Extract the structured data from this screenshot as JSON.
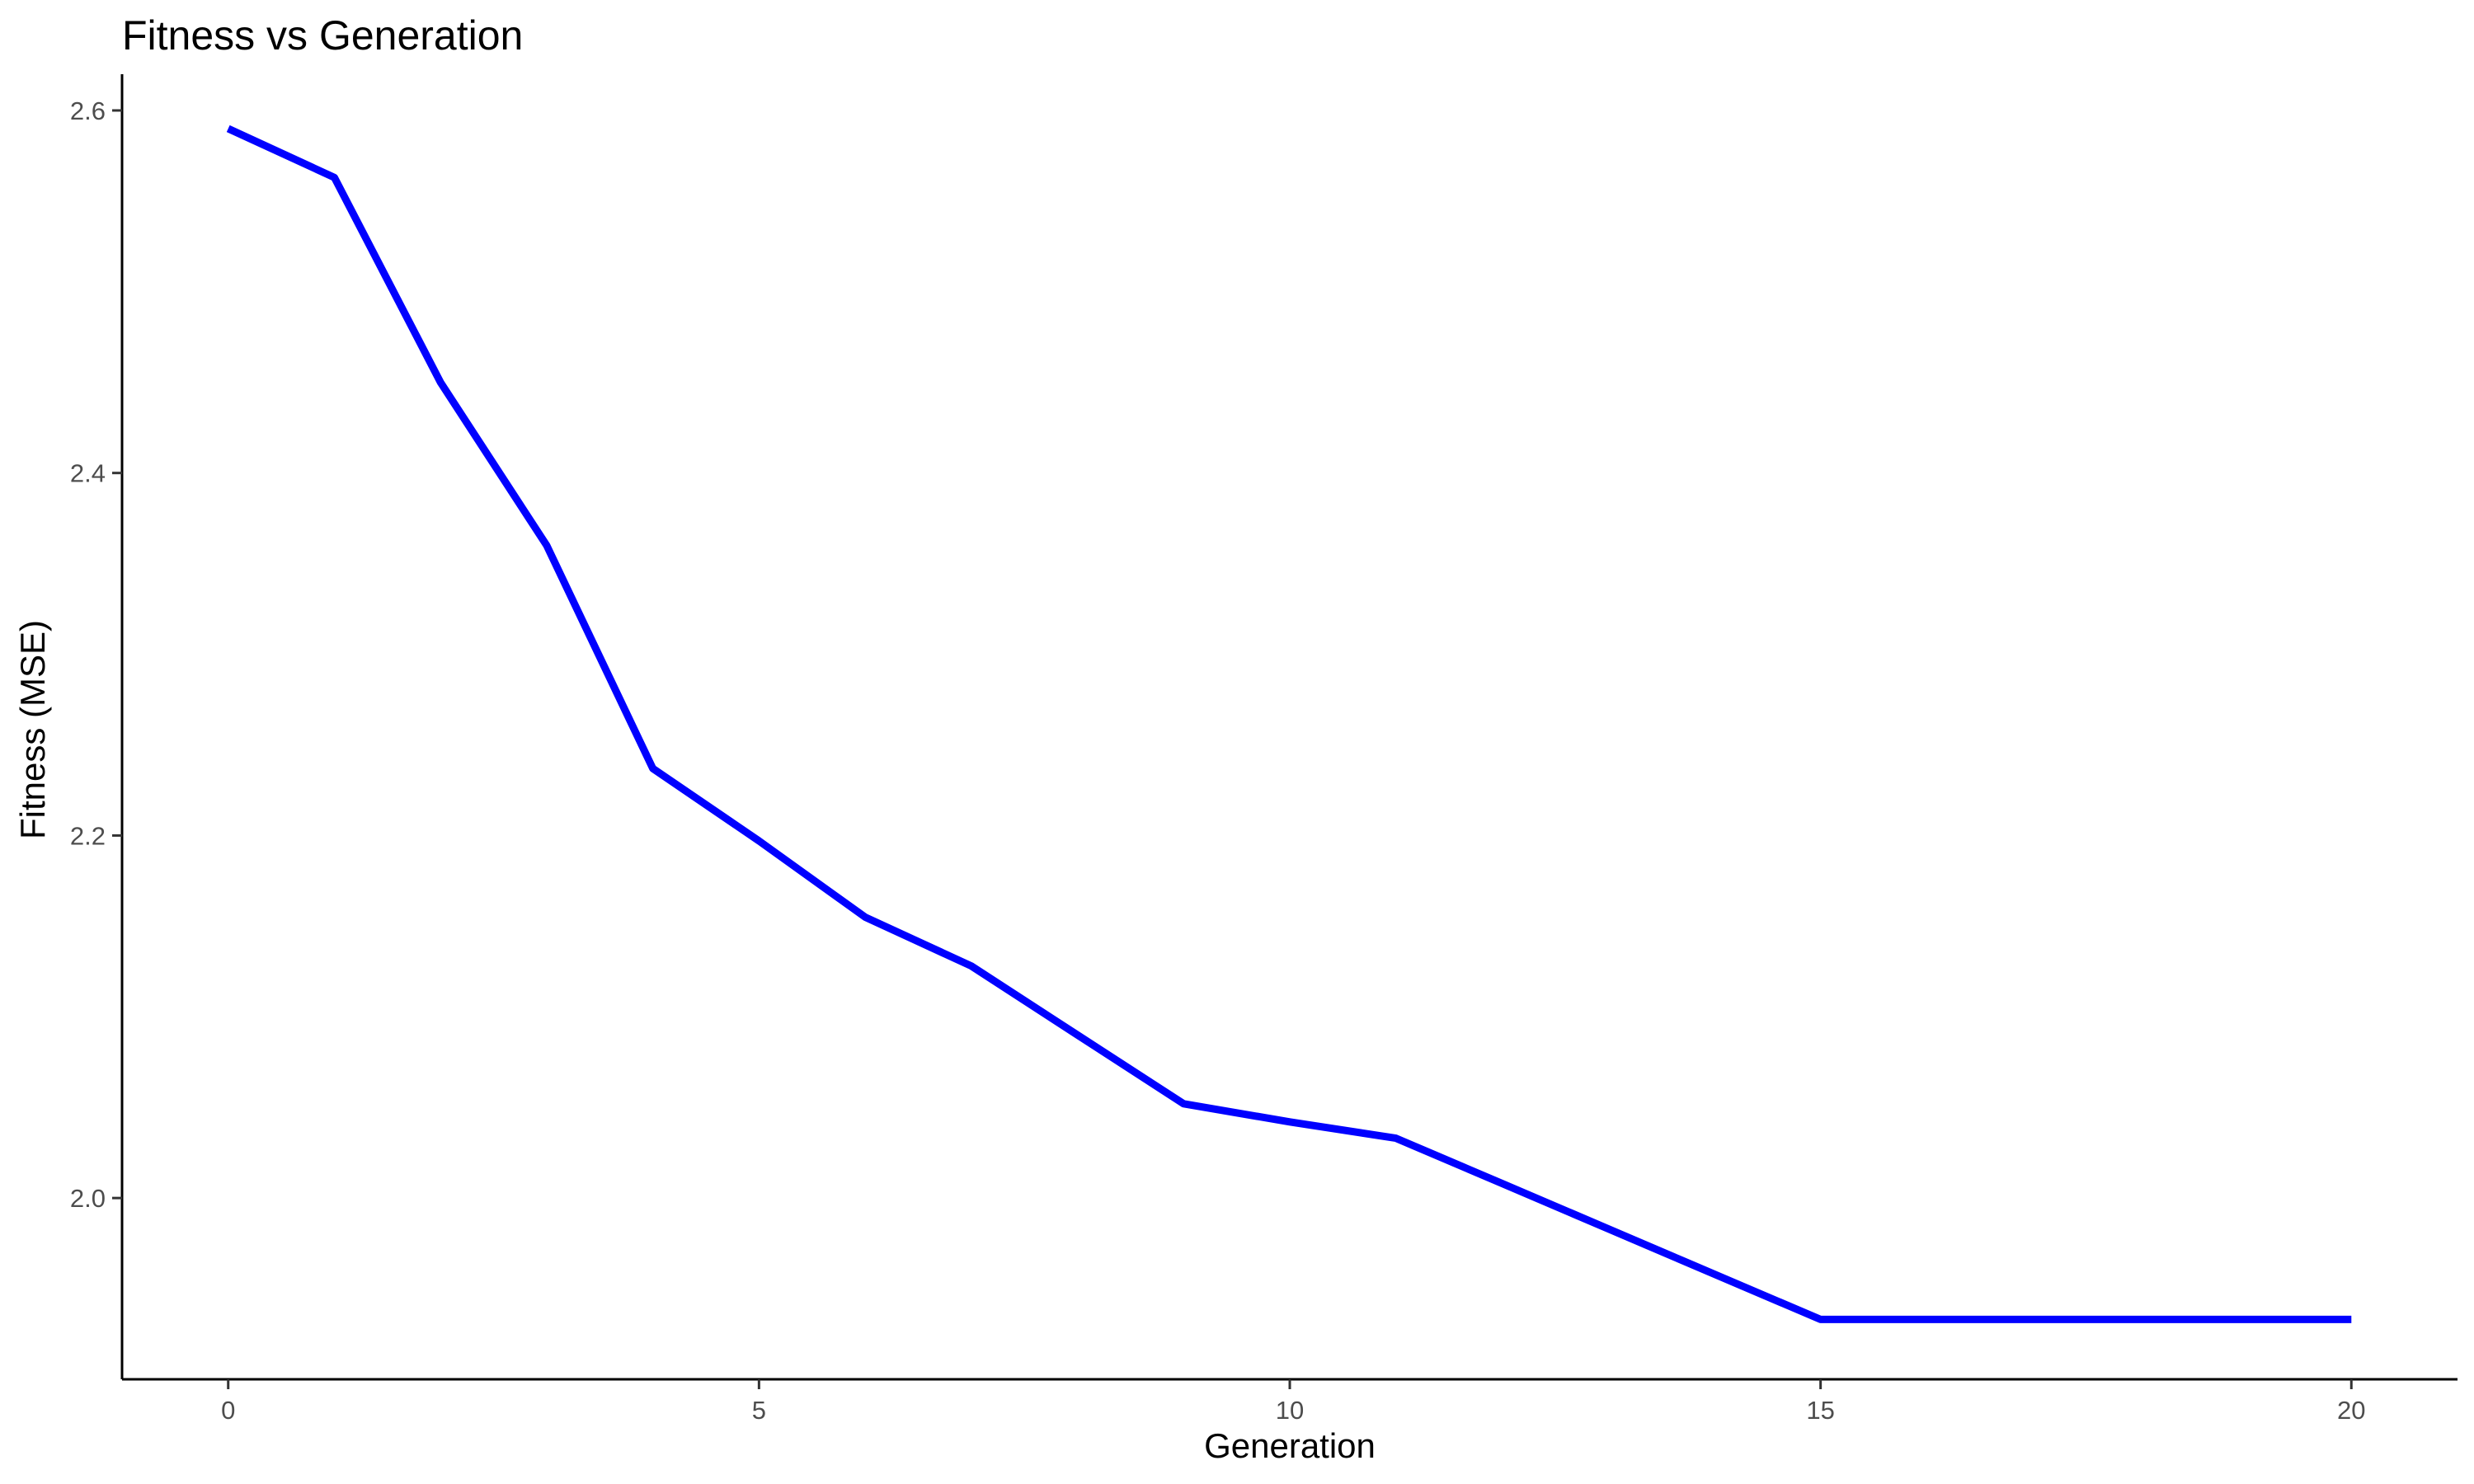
{
  "chart_data": {
    "type": "line",
    "title": "Fitness vs Generation",
    "xlabel": "Generation",
    "ylabel": "Fitness (MSE)",
    "xlim": [
      -1,
      21
    ],
    "ylim": [
      1.9,
      2.62
    ],
    "x_ticks": [
      0,
      5,
      10,
      15,
      20
    ],
    "y_ticks": [
      2.0,
      2.2,
      2.4,
      2.6
    ],
    "x_tick_labels": [
      "0",
      "5",
      "10",
      "15",
      "20"
    ],
    "y_tick_labels": [
      "2.0",
      "2.2",
      "2.4",
      "2.6"
    ],
    "grid": false,
    "legend": "none",
    "series": [
      {
        "name": "Fitness",
        "color": "#0000ff",
        "x": [
          0,
          1,
          2,
          3,
          4,
          5,
          6,
          7,
          8,
          9,
          10,
          11,
          12,
          13,
          14,
          15,
          16,
          17,
          18,
          19,
          20
        ],
        "values": [
          2.59,
          2.563,
          2.45,
          2.36,
          2.237,
          2.197,
          2.155,
          2.128,
          2.09,
          2.052,
          2.042,
          2.033,
          2.008,
          1.983,
          1.958,
          1.933,
          1.933,
          1.933,
          1.933,
          1.933,
          1.933
        ]
      }
    ]
  }
}
